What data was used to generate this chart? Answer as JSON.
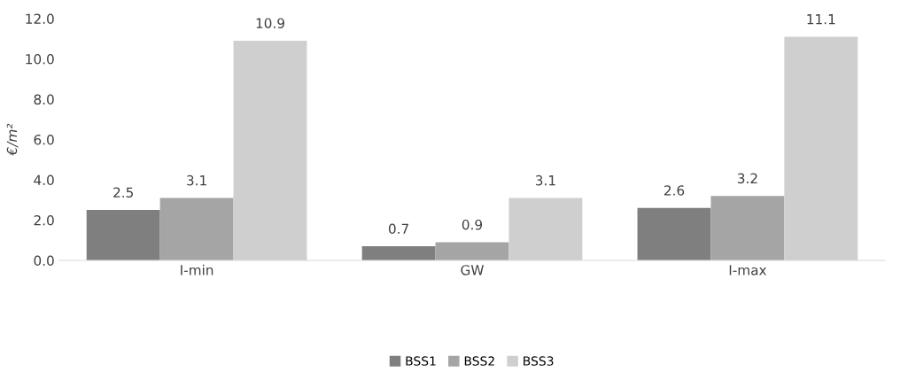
{
  "chart_data": {
    "type": "bar",
    "ylabel": "€/m²",
    "categories": [
      "I-min",
      "GW",
      "I-max"
    ],
    "series": [
      {
        "name": "BSS1",
        "color": "#7f7f7f",
        "values": [
          2.5,
          0.7,
          2.6
        ]
      },
      {
        "name": "BSS2",
        "color": "#a5a5a5",
        "values": [
          3.1,
          0.9,
          3.2
        ]
      },
      {
        "name": "BSS3",
        "color": "#cfcfcf",
        "values": [
          10.9,
          3.1,
          11.1
        ]
      }
    ],
    "ylim": [
      0,
      12
    ],
    "yticks": [
      {
        "value": 0,
        "label": "0.0"
      },
      {
        "value": 2,
        "label": "2.0"
      },
      {
        "value": 4,
        "label": "4.0"
      },
      {
        "value": 6,
        "label": "6.0"
      },
      {
        "value": 8,
        "label": "8.0"
      },
      {
        "value": 10,
        "label": "10.0"
      },
      {
        "value": 12,
        "label": "12.0"
      }
    ],
    "data_labels": true,
    "grid": false,
    "legend": "bottom"
  }
}
